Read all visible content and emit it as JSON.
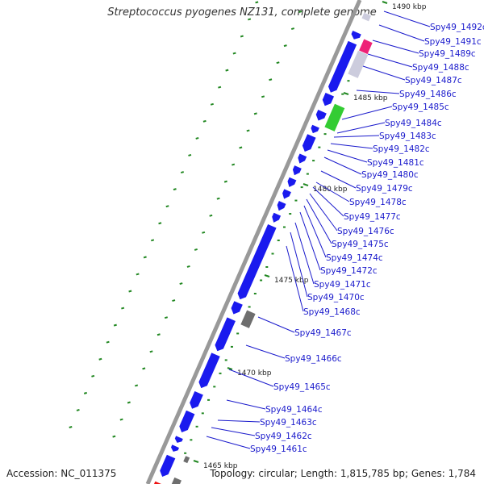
{
  "title": "Streptococcus pyogenes NZ131, complete genome",
  "accession": "Accession: NC_011375",
  "topology": "Topology: circular; Length: 1,815,785 bp; Genes: 1,784",
  "scale_labels": [
    "1490 kbp",
    "1485 kbp",
    "1480 kbp",
    "1475 kbp",
    "1470 kbp",
    "1465 kbp"
  ],
  "genes": [
    "Spy49_1492c",
    "Spy49_1491c",
    "Spy49_1489c",
    "Spy49_1488c",
    "Spy49_1487c",
    "Spy49_1486c",
    "Spy49_1485c",
    "Spy49_1484c",
    "Spy49_1483c",
    "Spy49_1482c",
    "Spy49_1481c",
    "Spy49_1480c",
    "Spy49_1479c",
    "Spy49_1478c",
    "Spy49_1477c",
    "Spy49_1476c",
    "Spy49_1475c",
    "Spy49_1474c",
    "Spy49_1472c",
    "Spy49_1471c",
    "Spy49_1470c",
    "Spy49_1468c",
    "Spy49_1467c",
    "Spy49_1466c",
    "Spy49_1465c",
    "Spy49_1464c",
    "Spy49_1463c",
    "Spy49_1462c",
    "Spy49_1461c"
  ],
  "colors": {
    "cds": "#1a1aee",
    "gray": "#6e6e6e",
    "magenta": "#ee2277",
    "green": "#33cc33",
    "light": "#ccccdd",
    "red": "#ee1111",
    "tick": "#228822",
    "backbone": "#999999",
    "label": "#1a1acc"
  }
}
